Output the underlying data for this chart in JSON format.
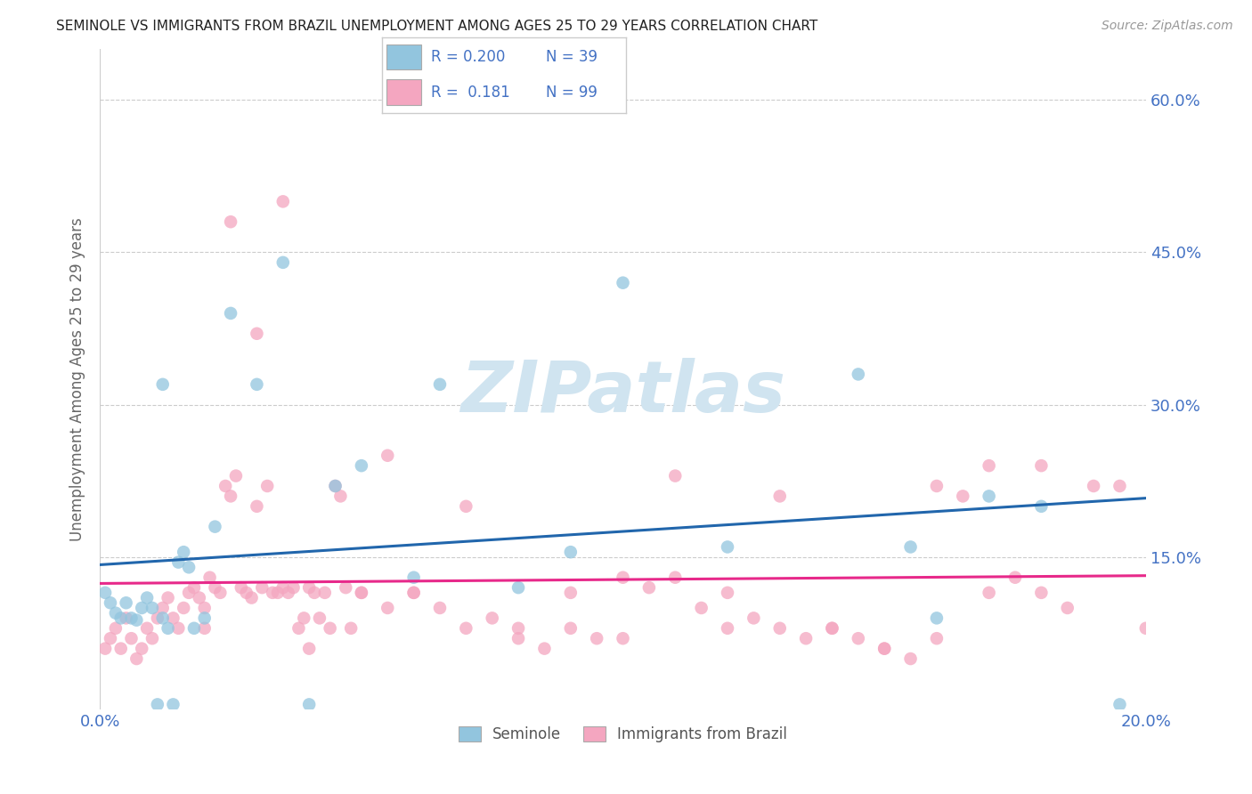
{
  "title": "SEMINOLE VS IMMIGRANTS FROM BRAZIL UNEMPLOYMENT AMONG AGES 25 TO 29 YEARS CORRELATION CHART",
  "source": "Source: ZipAtlas.com",
  "ylabel": "Unemployment Among Ages 25 to 29 years",
  "xlim": [
    0.0,
    0.2
  ],
  "ylim": [
    0.0,
    0.65
  ],
  "xtick_positions": [
    0.0,
    0.05,
    0.1,
    0.15,
    0.2
  ],
  "xtick_labels": [
    "0.0%",
    "",
    "",
    "",
    "20.0%"
  ],
  "ytick_positions": [
    0.15,
    0.3,
    0.45,
    0.6
  ],
  "ytick_labels": [
    "15.0%",
    "30.0%",
    "45.0%",
    "60.0%"
  ],
  "seminole_color": "#92c5de",
  "brazil_color": "#f4a6c0",
  "trend_seminole_color": "#2166ac",
  "trend_brazil_color": "#e7298a",
  "tick_color": "#4472c4",
  "ylabel_color": "#666666",
  "watermark_color": "#d0e4f0",
  "watermark_text": "ZIPatlas",
  "legend_r_sem": "R = 0.200",
  "legend_n_sem": "N = 39",
  "legend_r_bra": "R =  0.181",
  "legend_n_bra": "N = 99",
  "seminole_x": [
    0.001,
    0.002,
    0.003,
    0.004,
    0.005,
    0.006,
    0.007,
    0.008,
    0.009,
    0.01,
    0.011,
    0.012,
    0.013,
    0.014,
    0.015,
    0.016,
    0.017,
    0.018,
    0.02,
    0.025,
    0.03,
    0.035,
    0.045,
    0.05,
    0.06,
    0.065,
    0.08,
    0.09,
    0.1,
    0.12,
    0.145,
    0.155,
    0.16,
    0.17,
    0.18,
    0.195,
    0.012,
    0.022,
    0.04
  ],
  "seminole_y": [
    0.115,
    0.105,
    0.095,
    0.09,
    0.105,
    0.09,
    0.088,
    0.1,
    0.11,
    0.1,
    0.005,
    0.09,
    0.08,
    0.005,
    0.145,
    0.155,
    0.14,
    0.08,
    0.09,
    0.39,
    0.32,
    0.44,
    0.22,
    0.24,
    0.13,
    0.32,
    0.12,
    0.155,
    0.42,
    0.16,
    0.33,
    0.16,
    0.09,
    0.21,
    0.2,
    0.005,
    0.32,
    0.18,
    0.005
  ],
  "brazil_x": [
    0.001,
    0.002,
    0.003,
    0.004,
    0.005,
    0.006,
    0.007,
    0.008,
    0.009,
    0.01,
    0.011,
    0.012,
    0.013,
    0.014,
    0.015,
    0.016,
    0.017,
    0.018,
    0.019,
    0.02,
    0.021,
    0.022,
    0.023,
    0.024,
    0.025,
    0.026,
    0.027,
    0.028,
    0.029,
    0.03,
    0.031,
    0.032,
    0.033,
    0.034,
    0.035,
    0.036,
    0.037,
    0.038,
    0.039,
    0.04,
    0.041,
    0.042,
    0.043,
    0.044,
    0.045,
    0.046,
    0.047,
    0.048,
    0.05,
    0.055,
    0.06,
    0.065,
    0.07,
    0.075,
    0.08,
    0.085,
    0.09,
    0.095,
    0.1,
    0.105,
    0.11,
    0.115,
    0.12,
    0.125,
    0.13,
    0.135,
    0.14,
    0.145,
    0.15,
    0.155,
    0.16,
    0.165,
    0.17,
    0.175,
    0.18,
    0.185,
    0.19,
    0.195,
    0.2,
    0.025,
    0.03,
    0.05,
    0.07,
    0.09,
    0.11,
    0.13,
    0.15,
    0.17,
    0.02,
    0.04,
    0.06,
    0.08,
    0.1,
    0.12,
    0.14,
    0.16,
    0.18,
    0.035,
    0.055
  ],
  "brazil_y": [
    0.06,
    0.07,
    0.08,
    0.06,
    0.09,
    0.07,
    0.05,
    0.06,
    0.08,
    0.07,
    0.09,
    0.1,
    0.11,
    0.09,
    0.08,
    0.1,
    0.115,
    0.12,
    0.11,
    0.1,
    0.13,
    0.12,
    0.115,
    0.22,
    0.21,
    0.23,
    0.12,
    0.115,
    0.11,
    0.2,
    0.12,
    0.22,
    0.115,
    0.115,
    0.12,
    0.115,
    0.12,
    0.08,
    0.09,
    0.12,
    0.115,
    0.09,
    0.115,
    0.08,
    0.22,
    0.21,
    0.12,
    0.08,
    0.115,
    0.1,
    0.115,
    0.1,
    0.08,
    0.09,
    0.07,
    0.06,
    0.08,
    0.07,
    0.13,
    0.12,
    0.13,
    0.1,
    0.08,
    0.09,
    0.08,
    0.07,
    0.08,
    0.07,
    0.06,
    0.05,
    0.22,
    0.21,
    0.115,
    0.13,
    0.24,
    0.1,
    0.22,
    0.22,
    0.08,
    0.48,
    0.37,
    0.115,
    0.2,
    0.115,
    0.23,
    0.21,
    0.06,
    0.24,
    0.08,
    0.06,
    0.115,
    0.08,
    0.07,
    0.115,
    0.08,
    0.07,
    0.115,
    0.5,
    0.25
  ]
}
